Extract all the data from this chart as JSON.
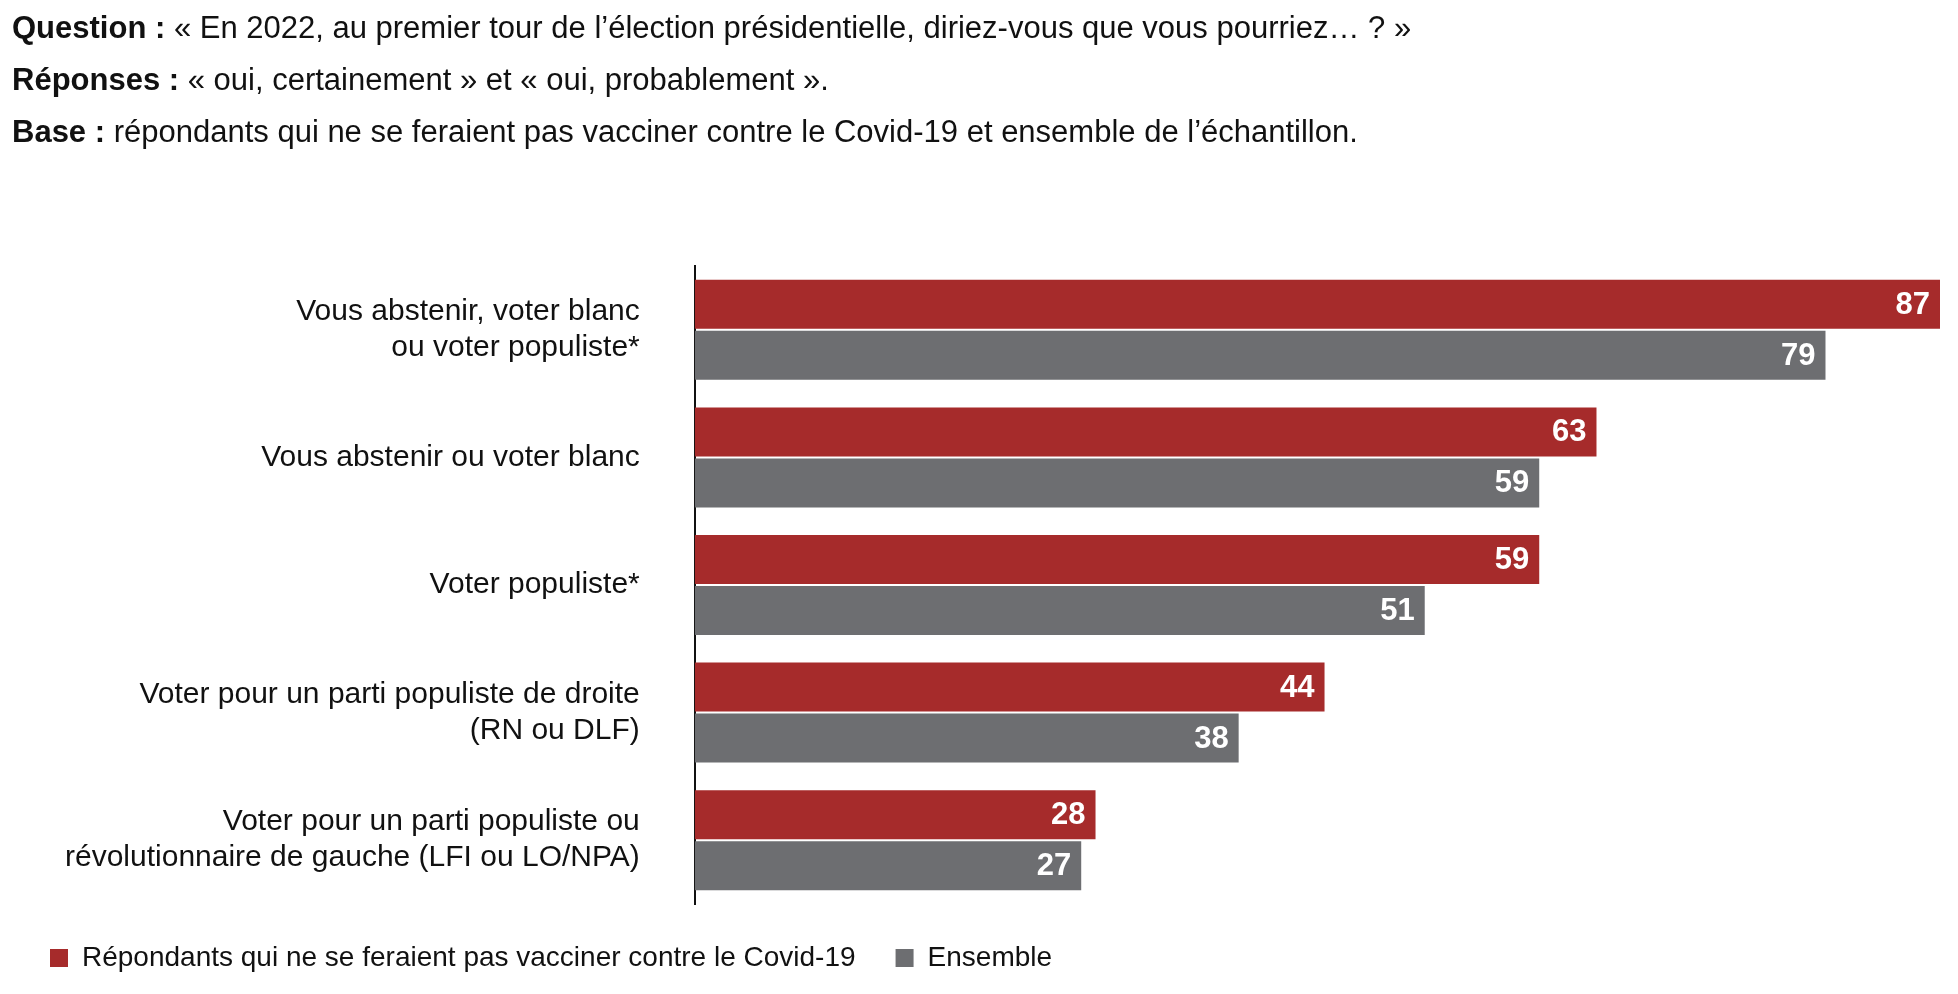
{
  "chart_data": {
    "type": "bar",
    "orientation": "horizontal",
    "title": "Question : « En 2022, au premier tour de l’élection présidentielle, diriez-vous que vous pourriez… ? »",
    "subtitle": "Réponses : « oui, certainement » et « oui, probablement ».",
    "annotations": [
      "Base : répondants qui ne se feraient pas vacciner contre le Covid-19 et ensemble de l’échantillon."
    ],
    "categories": [
      "Vous abstenir, voter blanc\nou voter populiste*",
      "Vous abstenir ou voter blanc",
      "Voter populiste*",
      "Voter pour un parti populiste de droite\n(RN ou DLF)",
      "Voter pour un parti populiste ou\nrévolutionnaire de gauche (LFI ou LO/NPA)"
    ],
    "series": [
      {
        "name": "Répondants qui ne se feraient pas vacciner contre le Covid-19",
        "color": "#a62b2b",
        "values": [
          87,
          63,
          59,
          44,
          28
        ]
      },
      {
        "name": "Ensemble",
        "color": "#6d6e71",
        "values": [
          79,
          59,
          51,
          38,
          27
        ]
      }
    ],
    "data_labels": true,
    "legend": "bottom"
  }
}
